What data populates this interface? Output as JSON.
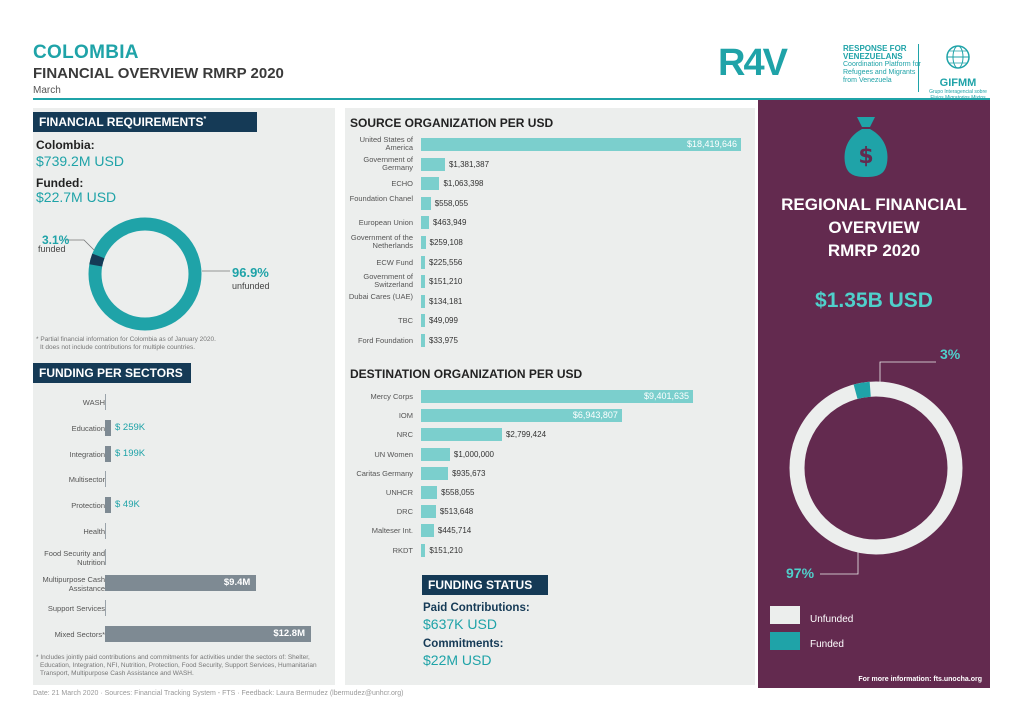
{
  "header": {
    "title": "COLOMBIA",
    "subtitle": "FINANCIAL OVERVIEW RMRP 2020",
    "month": "March"
  },
  "logos": {
    "r4v": "R4V",
    "r4v_title": "RESPONSE FOR VENEZUELANS",
    "r4v_sub": "Coordination Platform for Refugees and Migrants from Venezuela",
    "gifmm": "GIFMM",
    "gifmm_sub": "Grupo Interagencial sobre Flujos Migratorios Mixtos"
  },
  "financial_requirements": {
    "heading": "FINANCIAL REQUIREMENTS",
    "heading_mark": "*",
    "country_label": "Colombia:",
    "country_value": "$739.2M USD",
    "funded_label": "Funded:",
    "funded_value": "$22.7M USD",
    "funded_pct": "3.1%",
    "funded_text": "funded",
    "unfunded_pct": "96.9%",
    "unfunded_text": "unfunded",
    "donut_funded_fraction": 0.031,
    "note_line1": "* Partial financial information for Colombia as of January 2020.",
    "note_line2": "It does not include contributions for multiple countries."
  },
  "sectors": {
    "heading": "FUNDING PER SECTORS",
    "items": [
      {
        "label": "WASH",
        "value": "",
        "amount": 0
      },
      {
        "label": "Education",
        "value": "$ 259K",
        "amount": 0.259
      },
      {
        "label": "Integration",
        "value": "$ 199K",
        "amount": 0.199
      },
      {
        "label": "Multisector",
        "value": "",
        "amount": 0
      },
      {
        "label": "Protection",
        "value": "$ 49K",
        "amount": 0.049
      },
      {
        "label": "Health",
        "value": "",
        "amount": 0
      },
      {
        "label": "Food Security and Nutrition",
        "value": "",
        "amount": 0
      },
      {
        "label": "Multipurpose Cash Assistance",
        "value": "$9.4M",
        "amount": 9.4
      },
      {
        "label": "Support Services",
        "value": "",
        "amount": 0
      },
      {
        "label": "Mixed Sectors*",
        "value": "$12.8M",
        "amount": 12.8
      }
    ],
    "note_line1": "* Includes jointly paid contributions and commitments for activities under the sectors of: Shelter,",
    "note_line2": "Education, Integration, NFI, Nutrition, Protection, Food Security, Support Services, Humanitarian",
    "note_line3": "Transport, Multipurpose Cash Assistance and WASH."
  },
  "source_orgs": {
    "heading": "SOURCE ORGANIZATION PER USD",
    "items": [
      {
        "label": "United States of America",
        "value": "$18,419,646",
        "amount": 18419646
      },
      {
        "label": "Government of Germany",
        "value": "$1,381,387",
        "amount": 1381387
      },
      {
        "label": "ECHO",
        "value": "$1,063,398",
        "amount": 1063398
      },
      {
        "label": "Foundation Chanel",
        "value": "$558,055",
        "amount": 558055
      },
      {
        "label": "European Union",
        "value": "$463,949",
        "amount": 463949
      },
      {
        "label": "Government of the Netherlands",
        "value": "$259,108",
        "amount": 259108
      },
      {
        "label": "ECW Fund",
        "value": "$225,556",
        "amount": 225556
      },
      {
        "label": "Government of Switzerland",
        "value": "$151,210",
        "amount": 151210
      },
      {
        "label": "Dubai Cares (UAE)",
        "value": "$134,181",
        "amount": 134181
      },
      {
        "label": "TBC",
        "value": "$49,099",
        "amount": 49099
      },
      {
        "label": "Ford Foundation",
        "value": "$33,975",
        "amount": 33975
      }
    ]
  },
  "dest_orgs": {
    "heading": "DESTINATION ORGANIZATION PER USD",
    "items": [
      {
        "label": "Mercy Corps",
        "value": "$9,401,635",
        "amount": 9401635
      },
      {
        "label": "IOM",
        "value": "$6,943,807",
        "amount": 6943807
      },
      {
        "label": "NRC",
        "value": "$2,799,424",
        "amount": 2799424
      },
      {
        "label": "UN Women",
        "value": "$1,000,000",
        "amount": 1000000
      },
      {
        "label": "Caritas Germany",
        "value": "$935,673",
        "amount": 935673
      },
      {
        "label": "UNHCR",
        "value": "$558,055",
        "amount": 558055
      },
      {
        "label": "DRC",
        "value": "$513,648",
        "amount": 513648
      },
      {
        "label": "Malteser Int.",
        "value": "$445,714",
        "amount": 445714
      },
      {
        "label": "RKDT",
        "value": "$151,210",
        "amount": 151210
      }
    ]
  },
  "funding_status": {
    "heading": "FUNDING STATUS",
    "paid_label": "Paid Contributions:",
    "paid_value": "$637K USD",
    "commit_label": "Commitments:",
    "commit_value": "$22M USD"
  },
  "regional": {
    "title_line1": "REGIONAL FINANCIAL",
    "title_line2": "OVERVIEW",
    "title_line3": "RMRP 2020",
    "value": "$1.35B USD",
    "funded_pct": "3%",
    "unfunded_pct": "97%",
    "funded_fraction": 0.03,
    "legend_unfunded": "Unfunded",
    "legend_funded": "Funded",
    "info": "For more information: fts.unocha.org"
  },
  "footer": "Date: 21 March 2020 · Sources: Financial Tracking System - FTS · Feedback: Laura Bermudez (lbermudez@unhcr.org)",
  "colors": {
    "teal": "#1fa3a8",
    "navy": "#153a56",
    "plum": "#632a4f",
    "light_teal": "#7bcfcd"
  }
}
